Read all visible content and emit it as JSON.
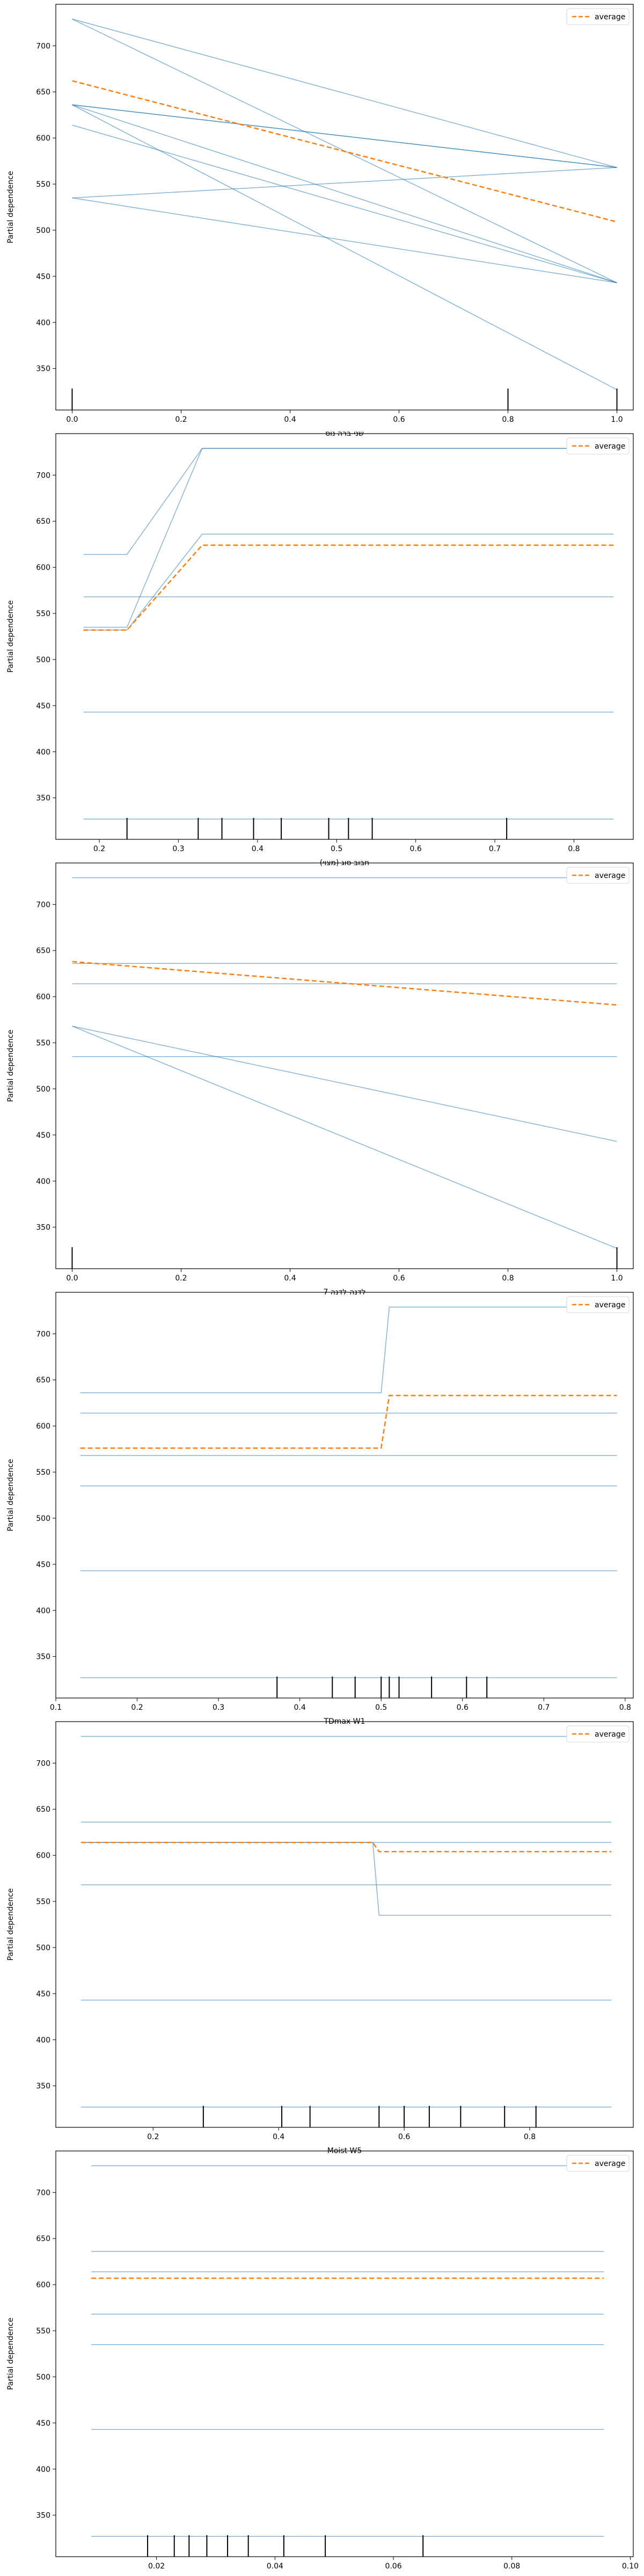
{
  "figure": {
    "legend_label": "average"
  },
  "colors": {
    "ice_line": "#1f77b4",
    "average_line": "#ff7f0e",
    "rug": "#000000",
    "axes": "#000000"
  },
  "chart_data": [
    {
      "type": "line",
      "xlabel": "שני-ברה נוס",
      "ylabel": "Partial dependence",
      "xlim": [
        -0.03,
        1.03
      ],
      "ylim": [
        305,
        745
      ],
      "xticks": [
        0.0,
        0.2,
        0.4,
        0.6,
        0.8,
        1.0
      ],
      "xtick_labels": [
        "0.0",
        "0.2",
        "0.4",
        "0.6",
        "0.8",
        "1.0"
      ],
      "yticks": [
        350,
        400,
        450,
        500,
        550,
        600,
        650,
        700
      ],
      "legend_position": "top-right",
      "x": [
        0.0,
        1.0
      ],
      "ice_lines": [
        [
          729,
          568
        ],
        [
          729,
          443
        ],
        [
          636,
          568
        ],
        [
          636,
          568
        ],
        [
          636,
          443
        ],
        [
          636,
          327
        ],
        [
          614,
          443
        ],
        [
          535,
          568
        ],
        [
          535,
          443
        ]
      ],
      "average": [
        662,
        509
      ],
      "rug": [
        0.0,
        0.8,
        1.0
      ]
    },
    {
      "type": "line",
      "xlabel": "(מצוי) חבוב סוג",
      "ylabel": "Partial dependence",
      "xlim": [
        0.145,
        0.875
      ],
      "ylim": [
        305,
        745
      ],
      "xticks": [
        0.2,
        0.3,
        0.4,
        0.5,
        0.6,
        0.7,
        0.8
      ],
      "xtick_labels": [
        "0.2",
        "0.3",
        "0.4",
        "0.5",
        "0.6",
        "0.7",
        "0.8"
      ],
      "yticks": [
        350,
        400,
        450,
        500,
        550,
        600,
        650,
        700
      ],
      "legend_position": "top-right",
      "x": [
        0.18,
        0.235,
        0.33,
        0.85
      ],
      "ice_lines": [
        [
          614,
          614,
          729,
          729
        ],
        [
          535,
          535,
          729,
          729
        ],
        [
          532,
          532,
          636,
          636
        ],
        [
          568,
          568,
          568,
          568
        ],
        [
          443,
          443,
          443,
          443
        ],
        [
          327,
          327,
          327,
          327
        ]
      ],
      "average": [
        532,
        532,
        624,
        624
      ],
      "rug": [
        0.235,
        0.325,
        0.355,
        0.395,
        0.43,
        0.49,
        0.515,
        0.545,
        0.715
      ]
    },
    {
      "type": "line",
      "xlabel": "7 לדנה-לדנה",
      "ylabel": "Partial dependence",
      "xlim": [
        -0.03,
        1.03
      ],
      "ylim": [
        305,
        745
      ],
      "xticks": [
        0.0,
        0.2,
        0.4,
        0.6,
        0.8,
        1.0
      ],
      "xtick_labels": [
        "0.0",
        "0.2",
        "0.4",
        "0.6",
        "0.8",
        "1.0"
      ],
      "yticks": [
        350,
        400,
        450,
        500,
        550,
        600,
        650,
        700
      ],
      "legend_position": "top-right",
      "x": [
        0.0,
        1.0
      ],
      "ice_lines": [
        [
          729,
          729
        ],
        [
          636,
          636
        ],
        [
          614,
          614
        ],
        [
          535,
          535
        ],
        [
          568,
          443
        ],
        [
          568,
          327
        ]
      ],
      "average": [
        638,
        591
      ],
      "rug": [
        0.0,
        1.0
      ]
    },
    {
      "type": "line",
      "xlabel": "TDmax W1",
      "ylabel": "Partial dependence",
      "xlim": [
        0.1,
        0.81
      ],
      "ylim": [
        305,
        745
      ],
      "xticks": [
        0.1,
        0.2,
        0.3,
        0.4,
        0.5,
        0.6,
        0.7,
        0.8
      ],
      "xtick_labels": [
        "0.1",
        "0.2",
        "0.3",
        "0.4",
        "0.5",
        "0.6",
        "0.7",
        "0.8"
      ],
      "yticks": [
        350,
        400,
        450,
        500,
        550,
        600,
        650,
        700
      ],
      "legend_position": "top-right",
      "x": [
        0.13,
        0.5,
        0.51,
        0.79
      ],
      "ice_lines": [
        [
          636,
          636,
          729,
          729
        ],
        [
          614,
          614,
          614,
          614
        ],
        [
          568,
          568,
          568,
          568
        ],
        [
          535,
          535,
          535,
          535
        ],
        [
          443,
          443,
          443,
          443
        ],
        [
          327,
          327,
          327,
          327
        ]
      ],
      "average": [
        576,
        576,
        633,
        633
      ],
      "rug": [
        0.372,
        0.44,
        0.468,
        0.5,
        0.51,
        0.522,
        0.562,
        0.605,
        0.63
      ]
    },
    {
      "type": "line",
      "xlabel": "Moist W5",
      "ylabel": "Partial dependence",
      "xlim": [
        0.045,
        0.965
      ],
      "ylim": [
        305,
        745
      ],
      "xticks": [
        0.2,
        0.4,
        0.6,
        0.8
      ],
      "xtick_labels": [
        "0.2",
        "0.4",
        "0.6",
        "0.8"
      ],
      "yticks": [
        350,
        400,
        450,
        500,
        550,
        600,
        650,
        700
      ],
      "legend_position": "top-right",
      "x": [
        0.085,
        0.55,
        0.56,
        0.93
      ],
      "ice_lines": [
        [
          729,
          729,
          729,
          729
        ],
        [
          636,
          636,
          636,
          636
        ],
        [
          614,
          614,
          614,
          614
        ],
        [
          614,
          614,
          535,
          535
        ],
        [
          568,
          568,
          568,
          568
        ],
        [
          443,
          443,
          443,
          443
        ],
        [
          327,
          327,
          327,
          327
        ]
      ],
      "average": [
        614,
        614,
        604,
        604
      ],
      "rug": [
        0.28,
        0.405,
        0.45,
        0.56,
        0.6,
        0.64,
        0.69,
        0.76,
        0.81
      ]
    },
    {
      "type": "line",
      "xlabel": "(מצוי) הקתה לדוע",
      "ylabel": "Partial dependence",
      "xlim": [
        0.003,
        0.1005
      ],
      "ylim": [
        305,
        745
      ],
      "xticks": [
        0.02,
        0.04,
        0.06,
        0.08,
        0.1
      ],
      "xtick_labels": [
        "0.02",
        "0.04",
        "0.06",
        "0.08",
        "0.10"
      ],
      "yticks": [
        350,
        400,
        450,
        500,
        550,
        600,
        650,
        700
      ],
      "legend_position": "top-right",
      "x": [
        0.009,
        0.0955
      ],
      "ice_lines": [
        [
          729,
          729
        ],
        [
          636,
          636
        ],
        [
          614,
          614
        ],
        [
          568,
          568
        ],
        [
          535,
          535
        ],
        [
          443,
          443
        ],
        [
          327,
          327
        ]
      ],
      "average": [
        607,
        607
      ],
      "rug": [
        0.0185,
        0.023,
        0.0255,
        0.0285,
        0.032,
        0.0355,
        0.0415,
        0.0485,
        0.065
      ]
    }
  ]
}
